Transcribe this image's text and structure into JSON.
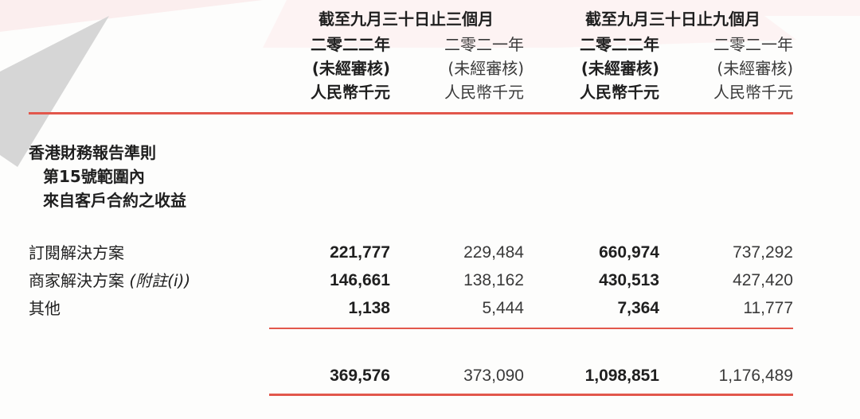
{
  "header": {
    "groups": [
      {
        "label": "截至九月三十日止三個月"
      },
      {
        "label": "截至九月三十日止九個月"
      }
    ],
    "columns": [
      {
        "year": "二零二二年",
        "audit": "(未經審核)",
        "unit": "人民幣千元",
        "bold": true
      },
      {
        "year": "二零二一年",
        "audit": "(未經審核)",
        "unit": "人民幣千元",
        "bold": false
      },
      {
        "year": "二零二二年",
        "audit": "(未經審核)",
        "unit": "人民幣千元",
        "bold": true
      },
      {
        "year": "二零二一年",
        "audit": "(未經審核)",
        "unit": "人民幣千元",
        "bold": false
      }
    ]
  },
  "section": {
    "line1": "香港財務報告準則",
    "line2": "第15號範圍內",
    "line3": "來自客戶合約之收益"
  },
  "rows": [
    {
      "label": "訂閱解決方案",
      "note": "",
      "values": [
        "221,777",
        "229,484",
        "660,974",
        "737,292"
      ]
    },
    {
      "label": "商家解決方案",
      "note": "(附註(i))",
      "values": [
        "146,661",
        "138,162",
        "430,513",
        "427,420"
      ]
    },
    {
      "label": "其他",
      "note": "",
      "values": [
        "1,138",
        "5,444",
        "7,364",
        "11,777"
      ]
    }
  ],
  "total": {
    "values": [
      "369,576",
      "373,090",
      "1,098,851",
      "1,176,489"
    ]
  },
  "colors": {
    "accent": "#e2574c",
    "decoration_gray": "#d4d4d4",
    "decoration_pink": "#fbeeee"
  }
}
